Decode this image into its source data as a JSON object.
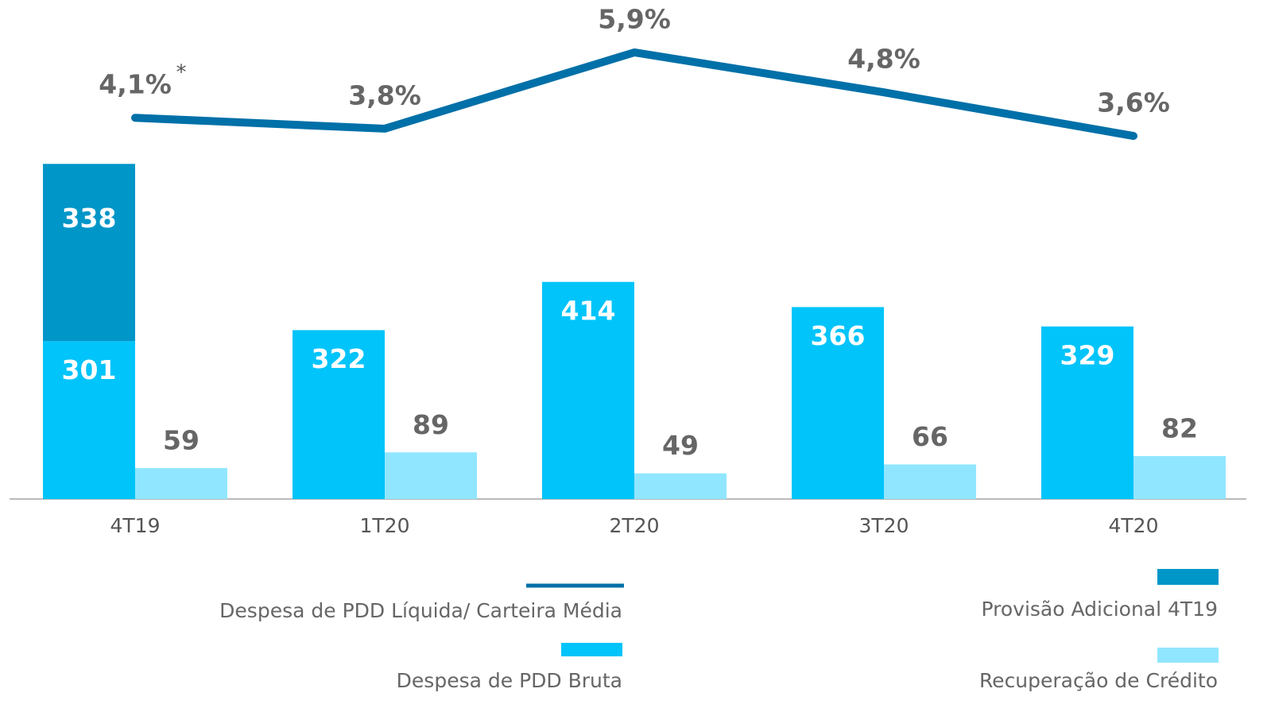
{
  "chart_data": {
    "type": "bar",
    "categories": [
      "4T19",
      "1T20",
      "2T20",
      "3T20",
      "4T20"
    ],
    "series": [
      {
        "name": "Despesa de PDD Bruta",
        "type": "bar",
        "color": "#00c4fa",
        "values": [
          301,
          322,
          414,
          366,
          329
        ]
      },
      {
        "name": "Provisão Adicional 4T19",
        "type": "bar",
        "color": "#0096c8",
        "values": [
          338,
          null,
          null,
          null,
          null
        ]
      },
      {
        "name": "Recuperação de Crédito",
        "type": "bar",
        "color": "#91e6ff",
        "values": [
          59,
          89,
          49,
          66,
          82
        ]
      },
      {
        "name": "Despesa de PDD Líquida/ Carteira Média",
        "type": "line",
        "color": "#0070a8",
        "values": [
          4.1,
          3.8,
          5.9,
          4.8,
          3.6
        ],
        "value_labels": [
          "4,1%",
          "3,8%",
          "5,9%",
          "4,8%",
          "3,6%"
        ]
      }
    ],
    "annotation": "*"
  }
}
